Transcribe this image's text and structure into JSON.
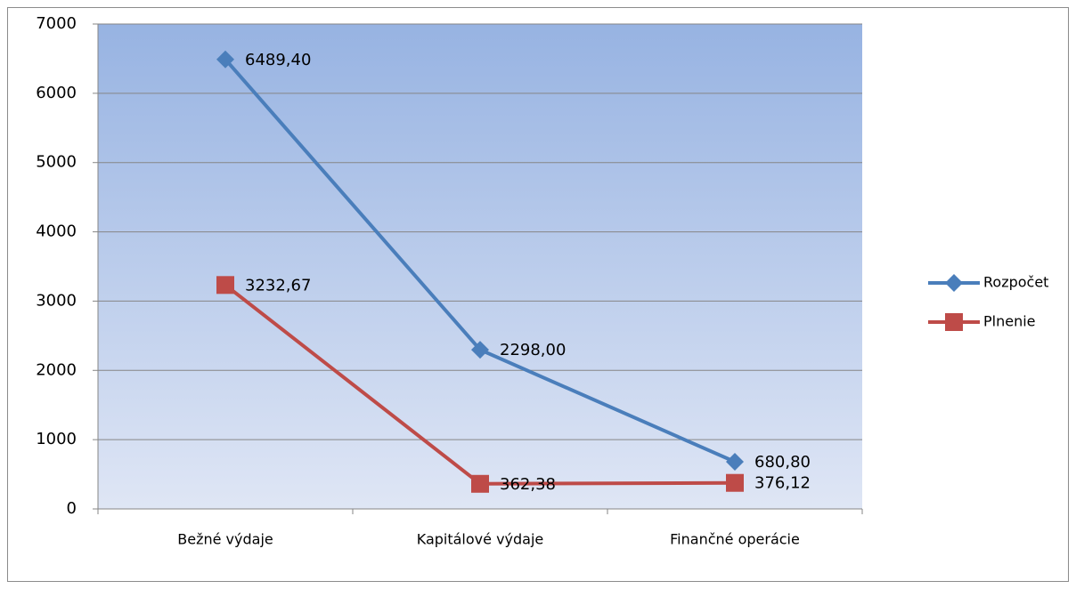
{
  "chart_data": {
    "type": "line",
    "categories": [
      "Bežné výdaje",
      "Kapitálové výdaje",
      "Finančné operácie"
    ],
    "series": [
      {
        "name": "Rozpočet",
        "color": "#4a7ebb",
        "marker": "diamond",
        "values": [
          6489.4,
          2298.0,
          680.8
        ],
        "value_labels": [
          "6489,40",
          "2298,00",
          "680,80"
        ]
      },
      {
        "name": "Plnenie",
        "color": "#be4b48",
        "marker": "square",
        "values": [
          3232.67,
          362.38,
          376.12
        ],
        "value_labels": [
          "3232,67",
          "362,38",
          "376,12"
        ]
      }
    ],
    "ylim": [
      0,
      7000
    ],
    "yticks": [
      0,
      1000,
      2000,
      3000,
      4000,
      5000,
      6000,
      7000
    ],
    "grid": true,
    "legend": "right"
  }
}
